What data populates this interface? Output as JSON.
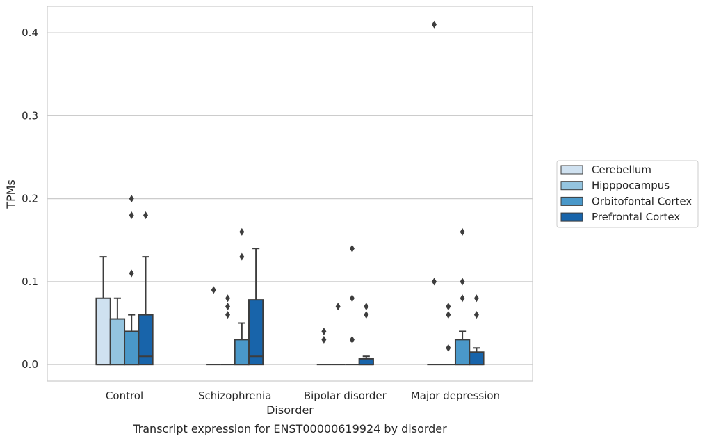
{
  "chart_data": {
    "type": "box",
    "caption": "Transcript expression for ENST00000619924 by disorder",
    "xlabel": "Disorder",
    "ylabel": "TPMs",
    "ylim": [
      -0.02,
      0.432
    ],
    "yticks": [
      0.0,
      0.1,
      0.2,
      0.3,
      0.4
    ],
    "ytick_labels": [
      "0.0",
      "0.1",
      "0.2",
      "0.3",
      "0.4"
    ],
    "categories": [
      "Control",
      "Schizophrenia",
      "Bipolar disorder",
      "Major depression"
    ],
    "grid": "horizontal",
    "legend_position": "right",
    "series": [
      {
        "name": "Cerebellum",
        "color": "#cfe1f0"
      },
      {
        "name": "Hipppocampus",
        "color": "#94c4df"
      },
      {
        "name": "Orbitofontal Cortex",
        "color": "#4a98c9"
      },
      {
        "name": "Prefrontal Cortex",
        "color": "#1864aa"
      }
    ],
    "boxes": [
      [
        {
          "q1": 0,
          "median": 0,
          "q3": 0.08,
          "whisker_high": 0.13,
          "outliers": []
        },
        {
          "q1": 0,
          "median": 0,
          "q3": 0.055,
          "whisker_high": 0.08,
          "outliers": []
        },
        {
          "q1": 0,
          "median": 0,
          "q3": 0.04,
          "whisker_high": 0.06,
          "outliers": [
            0.11,
            0.18,
            0.2
          ]
        },
        {
          "q1": 0,
          "median": 0.01,
          "q3": 0.06,
          "whisker_high": 0.13,
          "outliers": [
            0.18
          ]
        }
      ],
      [
        {
          "q1": 0,
          "median": 0,
          "q3": 0,
          "whisker_high": 0,
          "outliers": [
            0.09
          ]
        },
        {
          "q1": 0,
          "median": 0,
          "q3": 0,
          "whisker_high": 0,
          "outliers": [
            0.06,
            0.07,
            0.08
          ]
        },
        {
          "q1": 0,
          "median": 0,
          "q3": 0.03,
          "whisker_high": 0.05,
          "outliers": [
            0.13,
            0.16
          ]
        },
        {
          "q1": 0,
          "median": 0.01,
          "q3": 0.078,
          "whisker_high": 0.14,
          "outliers": []
        }
      ],
      [
        {
          "q1": 0,
          "median": 0,
          "q3": 0,
          "whisker_high": 0,
          "outliers": [
            0.03,
            0.04
          ]
        },
        {
          "q1": 0,
          "median": 0,
          "q3": 0,
          "whisker_high": 0,
          "outliers": [
            0.07
          ]
        },
        {
          "q1": 0,
          "median": 0,
          "q3": 0,
          "whisker_high": 0,
          "outliers": [
            0.03,
            0.08,
            0.14
          ]
        },
        {
          "q1": 0,
          "median": 0,
          "q3": 0.007,
          "whisker_high": 0.01,
          "outliers": [
            0.06,
            0.07
          ]
        }
      ],
      [
        {
          "q1": 0,
          "median": 0,
          "q3": 0,
          "whisker_high": 0,
          "outliers": [
            0.1,
            0.41
          ]
        },
        {
          "q1": 0,
          "median": 0,
          "q3": 0,
          "whisker_high": 0,
          "outliers": [
            0.02,
            0.06,
            0.07
          ]
        },
        {
          "q1": 0,
          "median": 0,
          "q3": 0.03,
          "whisker_high": 0.04,
          "outliers": [
            0.08,
            0.1,
            0.16
          ]
        },
        {
          "q1": 0,
          "median": 0,
          "q3": 0.015,
          "whisker_high": 0.02,
          "outliers": [
            0.06,
            0.08
          ]
        }
      ]
    ]
  }
}
